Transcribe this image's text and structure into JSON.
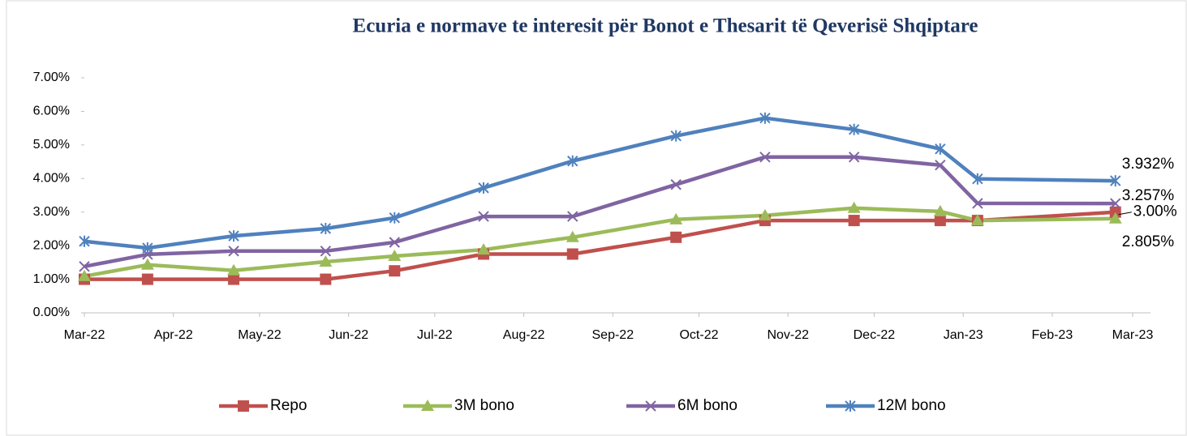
{
  "chart_data": {
    "type": "line",
    "title": "Ecuria e normave te interesit për Bonot e Thesarit të Qeverisë Shqiptare",
    "x": [
      "2022-03-01",
      "2022-03-23",
      "2022-04-22",
      "2022-05-24",
      "2022-06-17",
      "2022-07-18",
      "2022-08-18",
      "2022-09-23",
      "2022-10-24",
      "2022-11-24",
      "2022-12-24",
      "2023-01-06",
      "2023-02-23"
    ],
    "xlim": [
      "2022-03-01",
      "2023-03-01"
    ],
    "xticks": [
      {
        "value": "2022-03-01",
        "label": "Mar-22"
      },
      {
        "value": "2022-04-01",
        "label": "Apr-22"
      },
      {
        "value": "2022-05-01",
        "label": "May-22"
      },
      {
        "value": "2022-06-01",
        "label": "Jun-22"
      },
      {
        "value": "2022-07-01",
        "label": "Jul-22"
      },
      {
        "value": "2022-08-01",
        "label": "Aug-22"
      },
      {
        "value": "2022-09-01",
        "label": "Sep-22"
      },
      {
        "value": "2022-10-01",
        "label": "Oct-22"
      },
      {
        "value": "2022-11-01",
        "label": "Nov-22"
      },
      {
        "value": "2022-12-01",
        "label": "Dec-22"
      },
      {
        "value": "2023-01-01",
        "label": "Jan-23"
      },
      {
        "value": "2023-02-01",
        "label": "Feb-23"
      },
      {
        "value": "2023-03-01",
        "label": "Mar-23"
      }
    ],
    "ylim": [
      0,
      7
    ],
    "yticks": [
      {
        "value": 0,
        "label": "0.00%"
      },
      {
        "value": 1,
        "label": "1.00%"
      },
      {
        "value": 2,
        "label": "2.00%"
      },
      {
        "value": 3,
        "label": "3.00%"
      },
      {
        "value": 4,
        "label": "4.00%"
      },
      {
        "value": 5,
        "label": "5.00%"
      },
      {
        "value": 6,
        "label": "6.00%"
      },
      {
        "value": 7,
        "label": "7.00%"
      }
    ],
    "grid": false,
    "legend": "bottom",
    "series": [
      {
        "name": "Repo",
        "color": "#c0504d",
        "marker": "square",
        "values": [
          1.0,
          1.0,
          1.0,
          1.0,
          1.25,
          1.75,
          1.75,
          2.25,
          2.75,
          2.75,
          2.75,
          2.75,
          3.0
        ],
        "value_labels": [
          null,
          null,
          null,
          null,
          null,
          null,
          null,
          null,
          null,
          null,
          null,
          null,
          "3.00%"
        ]
      },
      {
        "name": "3M bono",
        "color": "#9bbb59",
        "marker": "triangle",
        "values": [
          1.09,
          1.43,
          1.26,
          1.52,
          1.69,
          1.88,
          2.25,
          2.78,
          2.9,
          3.12,
          3.02,
          2.75,
          2.805
        ],
        "value_labels": [
          null,
          null,
          null,
          null,
          null,
          null,
          null,
          null,
          null,
          null,
          null,
          null,
          "2.805%"
        ]
      },
      {
        "name": "6M bono",
        "color": "#8064a2",
        "marker": "x",
        "values": [
          1.38,
          1.74,
          1.84,
          1.84,
          2.1,
          2.87,
          2.87,
          3.82,
          4.64,
          4.64,
          4.4,
          3.26,
          3.257
        ],
        "value_labels": [
          null,
          null,
          null,
          null,
          null,
          null,
          null,
          null,
          null,
          null,
          null,
          null,
          "3.257%"
        ]
      },
      {
        "name": "12M bono",
        "color": "#4f81bd",
        "marker": "asterisk",
        "values": [
          2.13,
          1.93,
          2.29,
          2.51,
          2.83,
          3.72,
          4.52,
          5.27,
          5.8,
          5.46,
          4.88,
          3.99,
          3.932
        ],
        "value_labels": [
          null,
          null,
          null,
          null,
          null,
          null,
          null,
          null,
          null,
          null,
          null,
          null,
          "3.932%"
        ]
      }
    ]
  }
}
